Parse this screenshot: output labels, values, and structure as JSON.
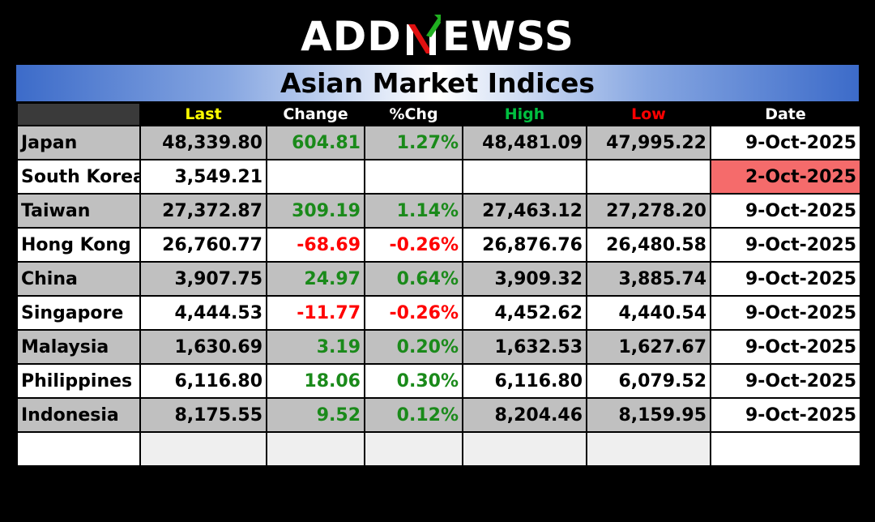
{
  "brand": {
    "logo_left": "ADD",
    "logo_n": "N",
    "logo_right": "EWSS"
  },
  "title": "Asian Market Indices",
  "colors": {
    "positive": "#1a8a1a",
    "negative": "#ff0000",
    "last_header": "#ffff00",
    "high_header": "#00c040",
    "low_header": "#ff0000",
    "stale_date": "#f56b6b"
  },
  "headers": {
    "market": "",
    "last": "Last",
    "change": "Change",
    "pct": "%Chg",
    "high": "High",
    "low": "Low",
    "date": "Date"
  },
  "rows": [
    {
      "market": "Japan",
      "last": "48,339.80",
      "change": "604.81",
      "pct": "1.27%",
      "high": "48,481.09",
      "low": "47,995.22",
      "date": "9-Oct-2025"
    },
    {
      "market": "South Korea",
      "last": "3,549.21",
      "change": "",
      "pct": "",
      "high": "",
      "low": "",
      "date": "2-Oct-2025"
    },
    {
      "market": "Taiwan",
      "last": "27,372.87",
      "change": "309.19",
      "pct": "1.14%",
      "high": "27,463.12",
      "low": "27,278.20",
      "date": "9-Oct-2025"
    },
    {
      "market": "Hong Kong",
      "last": "26,760.77",
      "change": "-68.69",
      "pct": "-0.26%",
      "high": "26,876.76",
      "low": "26,480.58",
      "date": "9-Oct-2025"
    },
    {
      "market": "China",
      "last": "3,907.75",
      "change": "24.97",
      "pct": "0.64%",
      "high": "3,909.32",
      "low": "3,885.74",
      "date": "9-Oct-2025"
    },
    {
      "market": "Singapore",
      "last": "4,444.53",
      "change": "-11.77",
      "pct": "-0.26%",
      "high": "4,452.62",
      "low": "4,440.54",
      "date": "9-Oct-2025"
    },
    {
      "market": "Malaysia",
      "last": "1,630.69",
      "change": "3.19",
      "pct": "0.20%",
      "high": "1,632.53",
      "low": "1,627.67",
      "date": "9-Oct-2025"
    },
    {
      "market": "Philippines",
      "last": "6,116.80",
      "change": "18.06",
      "pct": "0.30%",
      "high": "6,116.80",
      "low": "6,079.52",
      "date": "9-Oct-2025"
    },
    {
      "market": "Indonesia",
      "last": "8,175.55",
      "change": "9.52",
      "pct": "0.12%",
      "high": "8,204.46",
      "low": "8,159.95",
      "date": "9-Oct-2025"
    }
  ]
}
